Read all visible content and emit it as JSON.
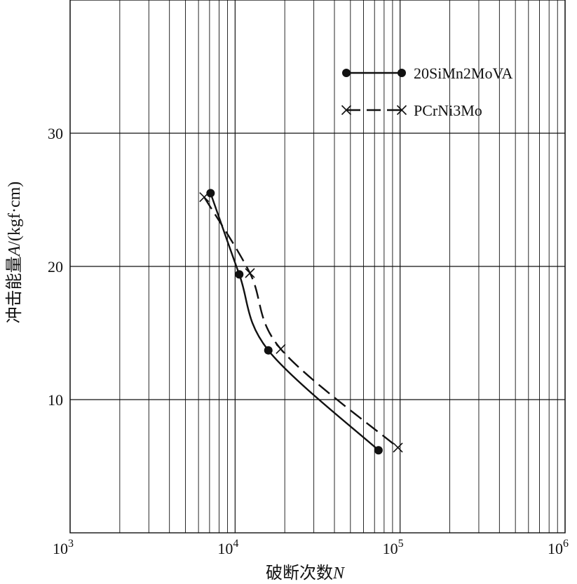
{
  "chart_data": {
    "type": "line",
    "xscale": "log",
    "xlim": [
      1000,
      1000000
    ],
    "ylim": [
      0,
      40
    ],
    "grid": true,
    "legend_position": "top-right",
    "xlabel_text": "破断次数",
    "xlabel_var": "N",
    "ylabel_text": "冲击能量",
    "ylabel_var": "A",
    "ylabel_unit": "/(kgf·cm)",
    "x_tick_labels": [
      {
        "value": 1000,
        "base": "10",
        "exp": "3"
      },
      {
        "value": 10000,
        "base": "10",
        "exp": "4"
      },
      {
        "value": 100000,
        "base": "10",
        "exp": "5"
      },
      {
        "value": 1000000,
        "base": "10",
        "exp": "6"
      }
    ],
    "y_tick_labels": [
      {
        "value": 10,
        "label": "10"
      },
      {
        "value": 20,
        "label": "20"
      },
      {
        "value": 30,
        "label": "30"
      }
    ],
    "series": [
      {
        "name": "20SiMn2MoVA",
        "line": "solid",
        "marker": "dot",
        "color": "#111111",
        "points": [
          {
            "x": 7100,
            "y": 25.5
          },
          {
            "x": 10600,
            "y": 19.4
          },
          {
            "x": 15900,
            "y": 13.7
          },
          {
            "x": 74000,
            "y": 6.2
          }
        ]
      },
      {
        "name": "PCrNi3Mo",
        "line": "dashed",
        "marker": "cross",
        "color": "#111111",
        "points": [
          {
            "x": 6500,
            "y": 25.2
          },
          {
            "x": 12300,
            "y": 19.5
          },
          {
            "x": 18900,
            "y": 13.8
          },
          {
            "x": 97000,
            "y": 6.4
          }
        ]
      }
    ]
  }
}
